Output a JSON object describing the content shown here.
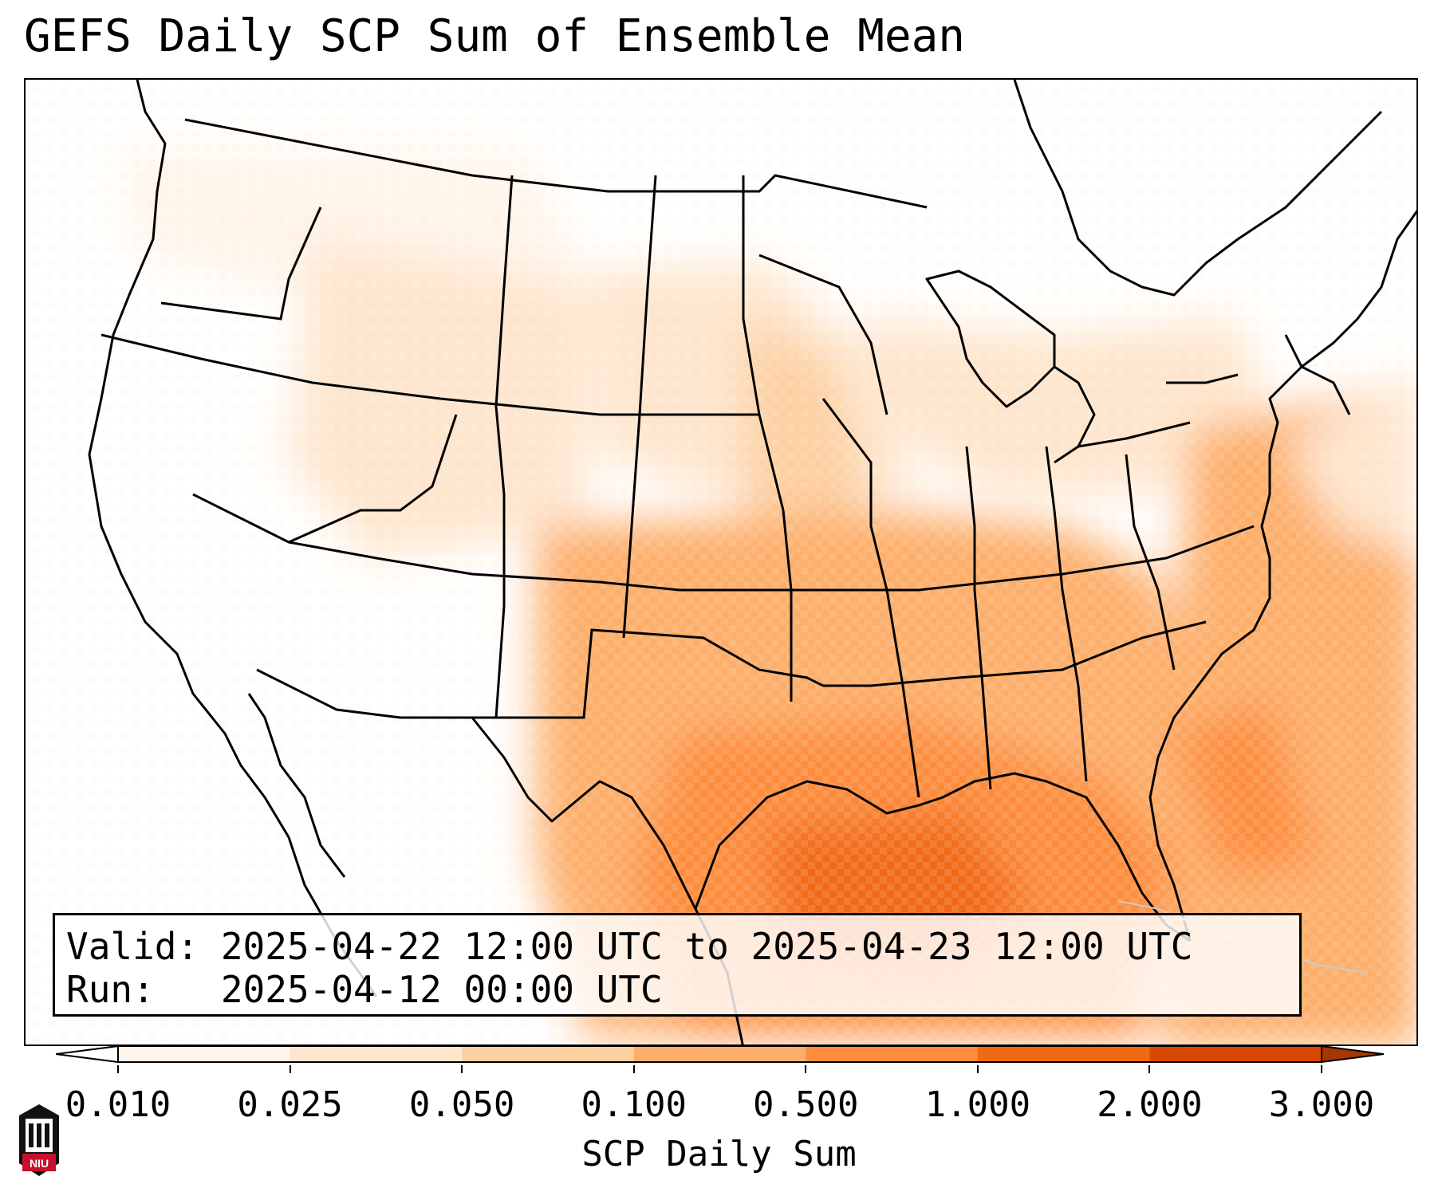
{
  "title": "GEFS Daily SCP Sum of Ensemble Mean",
  "info": {
    "valid": "Valid: 2025-04-22 12:00 UTC to 2025-04-23 12:00 UTC",
    "run": "Run:   2025-04-12 00:00 UTC"
  },
  "colorbar": {
    "label": "SCP Daily Sum",
    "ticks": [
      "0.010",
      "0.025",
      "0.050",
      "0.100",
      "0.500",
      "1.000",
      "2.000",
      "3.000"
    ],
    "colors": [
      "#fff5eb",
      "#fee6ce",
      "#fdd0a2",
      "#fdae6b",
      "#fd8d3c",
      "#f16913",
      "#d94801"
    ],
    "under_color": "#ffffff",
    "over_color": "#a63603",
    "extend": "both"
  },
  "logo": {
    "text": "NIU",
    "colors": {
      "shield": "#c8102e",
      "building": "#111111"
    }
  },
  "map": {
    "projection": "Lambert conformal",
    "region": "Continental United States",
    "highest_values_region": "Northern Gulf of Mexico",
    "elevated_values_region": "Southern and eastern United States and western Atlantic"
  }
}
